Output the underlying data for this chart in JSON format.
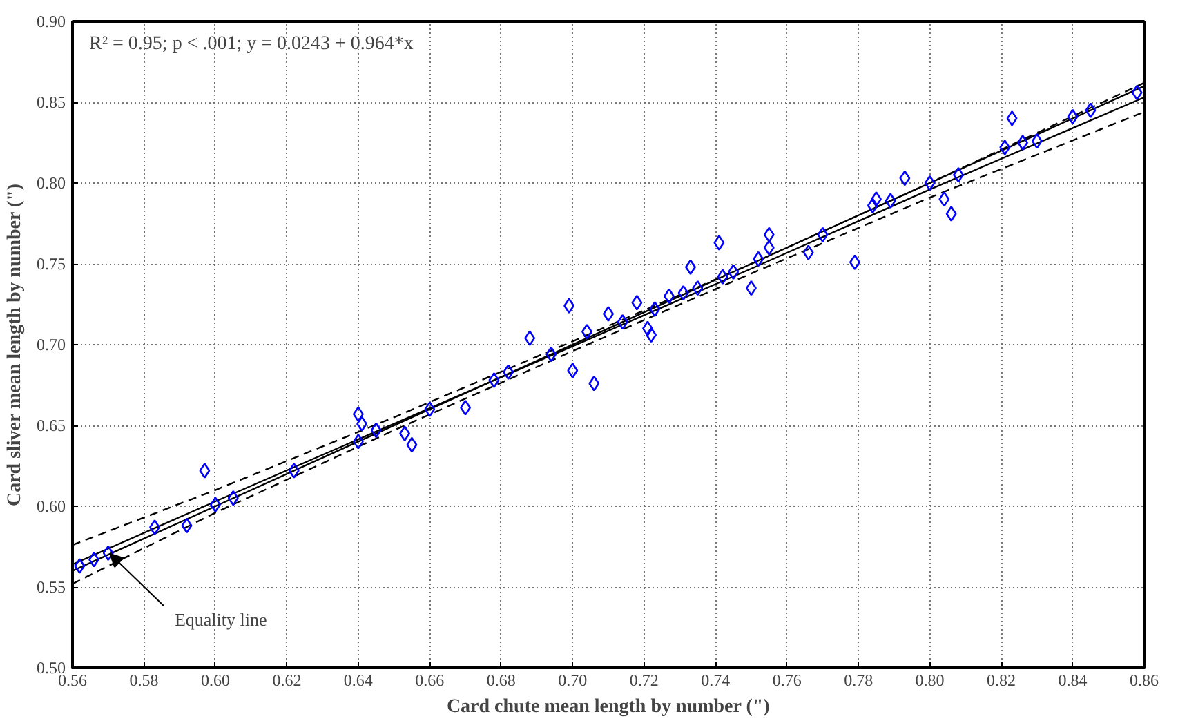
{
  "chart_data": {
    "type": "scatter",
    "xlabel": "Card chute mean length by number (\")",
    "ylabel": "Card sliver mean length by number (\")",
    "xlim": [
      0.56,
      0.86
    ],
    "ylim": [
      0.5,
      0.9
    ],
    "xticks": [
      {
        "value": 0.56,
        "label": "0.56"
      },
      {
        "value": 0.58,
        "label": "0.58"
      },
      {
        "value": 0.6,
        "label": "0.60"
      },
      {
        "value": 0.62,
        "label": "0.62"
      },
      {
        "value": 0.64,
        "label": "0.64"
      },
      {
        "value": 0.66,
        "label": "0.66"
      },
      {
        "value": 0.68,
        "label": "0.68"
      },
      {
        "value": 0.7,
        "label": "0.70"
      },
      {
        "value": 0.72,
        "label": "0.72"
      },
      {
        "value": 0.74,
        "label": "0.74"
      },
      {
        "value": 0.76,
        "label": "0.76"
      },
      {
        "value": 0.78,
        "label": "0.78"
      },
      {
        "value": 0.8,
        "label": "0.80"
      },
      {
        "value": 0.82,
        "label": "0.82"
      },
      {
        "value": 0.84,
        "label": "0.84"
      },
      {
        "value": 0.86,
        "label": "0.86"
      }
    ],
    "yticks": [
      {
        "value": 0.5,
        "label": "0.50"
      },
      {
        "value": 0.55,
        "label": "0.55"
      },
      {
        "value": 0.6,
        "label": "0.60"
      },
      {
        "value": 0.65,
        "label": "0.65"
      },
      {
        "value": 0.7,
        "label": "0.70"
      },
      {
        "value": 0.75,
        "label": "0.75"
      },
      {
        "value": 0.8,
        "label": "0.80"
      },
      {
        "value": 0.85,
        "label": "0.85"
      },
      {
        "value": 0.9,
        "label": "0.90"
      }
    ],
    "grid": true,
    "annotations": [
      "R² = 0.95; p < .001;  y = 0.0243 + 0.964*x"
    ],
    "series": [
      {
        "color": "#0000ff",
        "marker": "diamond",
        "x": [
          0.562,
          0.566,
          0.57,
          0.583,
          0.592,
          0.597,
          0.6,
          0.605,
          0.622,
          0.64,
          0.64,
          0.641,
          0.645,
          0.653,
          0.655,
          0.66,
          0.67,
          0.678,
          0.682,
          0.688,
          0.694,
          0.699,
          0.7,
          0.704,
          0.706,
          0.71,
          0.714,
          0.718,
          0.721,
          0.722,
          0.723,
          0.727,
          0.731,
          0.733,
          0.735,
          0.741,
          0.742,
          0.745,
          0.75,
          0.752,
          0.755,
          0.755,
          0.766,
          0.77,
          0.779,
          0.784,
          0.785,
          0.789,
          0.793,
          0.8,
          0.804,
          0.806,
          0.808,
          0.821,
          0.823,
          0.826,
          0.83,
          0.84,
          0.845,
          0.858
        ],
        "values": [
          0.563,
          0.567,
          0.571,
          0.587,
          0.588,
          0.622,
          0.601,
          0.605,
          0.622,
          0.657,
          0.64,
          0.651,
          0.647,
          0.645,
          0.638,
          0.66,
          0.661,
          0.678,
          0.683,
          0.704,
          0.694,
          0.724,
          0.684,
          0.708,
          0.676,
          0.719,
          0.714,
          0.726,
          0.71,
          0.706,
          0.722,
          0.73,
          0.732,
          0.748,
          0.735,
          0.763,
          0.742,
          0.745,
          0.735,
          0.753,
          0.768,
          0.76,
          0.757,
          0.768,
          0.751,
          0.786,
          0.79,
          0.789,
          0.803,
          0.8,
          0.79,
          0.781,
          0.805,
          0.822,
          0.84,
          0.825,
          0.826,
          0.841,
          0.845,
          0.856
        ]
      },
      {
        "type": "line",
        "color": "#000000",
        "line_style": "solid",
        "marker": "none",
        "x": [
          0.56,
          0.6,
          0.65,
          0.7,
          0.75,
          0.8,
          0.86
        ],
        "values": [
          0.564,
          0.603,
          0.651,
          0.699,
          0.747,
          0.796,
          0.853
        ]
      },
      {
        "type": "line",
        "color": "#000000",
        "line_style": "dashed",
        "marker": "none",
        "x": [
          0.56,
          0.6,
          0.65,
          0.7,
          0.75,
          0.8,
          0.86
        ],
        "values": [
          0.552,
          0.596,
          0.647,
          0.696,
          0.744,
          0.791,
          0.844
        ]
      },
      {
        "type": "line",
        "color": "#000000",
        "line_style": "dashed",
        "marker": "none",
        "x": [
          0.56,
          0.6,
          0.65,
          0.7,
          0.75,
          0.8,
          0.86
        ],
        "values": [
          0.576,
          0.61,
          0.655,
          0.702,
          0.75,
          0.8,
          0.862
        ]
      },
      {
        "type": "line",
        "name": "Equality line",
        "color": "#000000",
        "line_style": "solid",
        "marker": "none",
        "x": [
          0.56,
          0.86
        ],
        "values": [
          0.56,
          0.86
        ]
      }
    ]
  }
}
